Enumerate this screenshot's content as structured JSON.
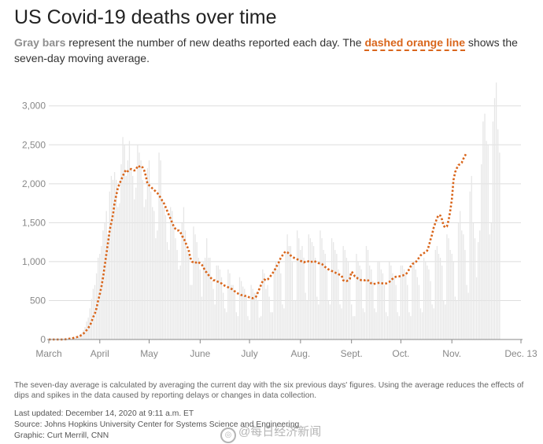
{
  "header": {
    "title": "US Covid-19 deaths over time",
    "subtitle_key_gray": "Gray bars",
    "subtitle_part1": " represent the number of new deaths reported each day. The ",
    "subtitle_key_orange": "dashed orange line",
    "subtitle_part2": " shows the seven-day moving average."
  },
  "footer": {
    "note": "The seven-day average is calculated by averaging the current day with the six previous days' figures. Using the average reduces the effects of dips and spikes in the data caused by reporting delays or changes in data collection.",
    "updated": "Last updated: December 14, 2020 at 9:11 a.m. ET",
    "source": "Source: Johns Hopkins University Center for Systems Science and Engineering",
    "credit": "Graphic: Curt Merrill, CNN"
  },
  "watermark": {
    "text": "@每日经济新闻",
    "icon": "weibo-icon"
  },
  "colors": {
    "bars": "#e6e6e6",
    "average_line": "#d9661c",
    "grid": "#dddddd",
    "axis_text": "#888888"
  },
  "chart_data": {
    "type": "bar",
    "title": "US Covid-19 deaths over time",
    "ylim": [
      0,
      3300
    ],
    "yticks": [
      0,
      500,
      1000,
      1500,
      2000,
      2500,
      3000
    ],
    "ytick_labels": [
      "0",
      "500",
      "1,000",
      "1,500",
      "2,000",
      "2,500",
      "3,000"
    ],
    "x_start": "2020-03-01",
    "x_end": "2020-12-13",
    "xtick_labels": [
      "March",
      "April",
      "May",
      "June",
      "July",
      "Aug.",
      "Sept.",
      "Oct.",
      "Nov.",
      "Dec. 13"
    ],
    "xtick_dates": [
      "2020-03-01",
      "2020-04-01",
      "2020-05-01",
      "2020-06-01",
      "2020-07-01",
      "2020-08-01",
      "2020-09-01",
      "2020-10-01",
      "2020-11-01",
      "2020-12-13"
    ],
    "grid": "horizontal",
    "series": [
      {
        "name": "New deaths reported each day",
        "kind": "bar",
        "values": [
          0,
          0,
          0,
          0,
          0,
          0,
          0,
          0,
          0,
          0,
          2,
          5,
          8,
          10,
          12,
          18,
          25,
          35,
          50,
          60,
          80,
          120,
          160,
          230,
          280,
          400,
          520,
          650,
          700,
          850,
          1050,
          1100,
          1200,
          1400,
          1500,
          1650,
          1350,
          1900,
          2100,
          2050,
          2150,
          2050,
          1700,
          1750,
          2250,
          2600,
          2500,
          2100,
          2300,
          2550,
          2200,
          2100,
          1800,
          1950,
          2500,
          2400,
          2300,
          2050,
          1700,
          1800,
          2200,
          2300,
          1900,
          1700,
          1650,
          1300,
          1400,
          2400,
          2300,
          1800,
          1700,
          1600,
          1250,
          1150,
          1700,
          1650,
          1450,
          1300,
          1150,
          900,
          950,
          1500,
          1700,
          1400,
          1150,
          1100,
          700,
          700,
          1450,
          1350,
          1250,
          1050,
          900,
          550,
          1000,
          1050,
          1300,
          1050,
          1050,
          750,
          650,
          450,
          950,
          950,
          900,
          800,
          600,
          400,
          350,
          900,
          850,
          700,
          700,
          600,
          350,
          300,
          800,
          750,
          680,
          650,
          550,
          300,
          250,
          700,
          650,
          600,
          600,
          500,
          280,
          300,
          900,
          850,
          650,
          700,
          550,
          350,
          350,
          900,
          1000,
          900,
          1000,
          850,
          450,
          400,
          1100,
          1350,
          1200,
          1200,
          1000,
          500,
          500,
          1400,
          1300,
          1150,
          1200,
          1050,
          600,
          500,
          1350,
          1300,
          1250,
          1200,
          1050,
          550,
          450,
          1400,
          1300,
          1150,
          1100,
          900,
          500,
          450,
          1300,
          1250,
          1150,
          1100,
          900,
          450,
          400,
          1200,
          1150,
          1050,
          1000,
          850,
          450,
          300,
          300,
          1100,
          1000,
          950,
          900,
          400,
          350,
          1200,
          1150,
          950,
          900,
          750,
          400,
          350,
          1000,
          1000,
          900,
          850,
          700,
          350,
          300,
          1000,
          950,
          850,
          800,
          700,
          350,
          300,
          950,
          950,
          900,
          850,
          700,
          350,
          300,
          950,
          1000,
          900,
          800,
          700,
          400,
          350,
          1050,
          1000,
          950,
          900,
          750,
          450,
          400,
          1150,
          1200,
          1100,
          1050,
          950,
          500,
          450,
          1350,
          1300,
          1150,
          1100,
          1000,
          550,
          500,
          1500,
          1650,
          1400,
          1350,
          1150,
          700,
          600,
          1900,
          2100,
          1500,
          1300,
          800,
          1250,
          1400,
          2250,
          2800,
          2900,
          2550,
          2500,
          1350,
          1500,
          2800,
          3100,
          3300,
          2700,
          2400
        ]
      },
      {
        "name": "Seven-day moving average",
        "kind": "line",
        "values": [
          0,
          0,
          0,
          0,
          0,
          0,
          0,
          0,
          0,
          0,
          2,
          5,
          9,
          12,
          15,
          20,
          25,
          30,
          35,
          45,
          60,
          75,
          95,
          120,
          150,
          180,
          230,
          290,
          330,
          400,
          500,
          580,
          680,
          800,
          950,
          1100,
          1250,
          1400,
          1500,
          1600,
          1750,
          1850,
          1950,
          2000,
          2050,
          2100,
          2150,
          2180,
          2160,
          2170,
          2190,
          2180,
          2170,
          2180,
          2230,
          2220,
          2230,
          2210,
          2170,
          2100,
          2000,
          1980,
          1960,
          1940,
          1920,
          1900,
          1880,
          1850,
          1820,
          1780,
          1750,
          1700,
          1650,
          1600,
          1550,
          1500,
          1450,
          1420,
          1400,
          1400,
          1380,
          1330,
          1300,
          1250,
          1200,
          1150,
          1050,
          1000,
          990,
          980,
          1000,
          990,
          980,
          960,
          930,
          880,
          860,
          830,
          800,
          780,
          760,
          760,
          750,
          740,
          730,
          720,
          700,
          690,
          680,
          670,
          660,
          650,
          640,
          620,
          600,
          590,
          580,
          570,
          570,
          560,
          560,
          550,
          540,
          535,
          530,
          535,
          550,
          600,
          650,
          700,
          750,
          770,
          760,
          770,
          790,
          820,
          850,
          880,
          920,
          960,
          1000,
          1050,
          1080,
          1110,
          1130,
          1120,
          1100,
          1080,
          1060,
          1050,
          1040,
          1030,
          1020,
          1010,
          1000,
          990,
          1000,
          1010,
          1000,
          990,
          1000,
          1010,
          1000,
          990,
          980,
          980,
          970,
          950,
          930,
          920,
          900,
          890,
          880,
          870,
          860,
          850,
          840,
          830,
          820,
          760,
          750,
          750,
          760,
          780,
          870,
          850,
          810,
          800,
          780,
          770,
          760,
          755,
          760,
          770,
          760,
          740,
          720,
          710,
          715,
          720,
          725,
          730,
          725,
          720,
          715,
          720,
          730,
          740,
          760,
          780,
          800,
          805,
          810,
          810,
          815,
          820,
          830,
          840,
          860,
          900,
          940,
          970,
          980,
          990,
          1020,
          1050,
          1080,
          1100,
          1110,
          1120,
          1140,
          1200,
          1280,
          1350,
          1440,
          1500,
          1560,
          1600,
          1590,
          1540,
          1460,
          1440,
          1450,
          1530,
          1650,
          1800,
          2050,
          2150,
          2200,
          2240,
          2250,
          2270,
          2320,
          2360,
          2400
        ]
      }
    ]
  }
}
